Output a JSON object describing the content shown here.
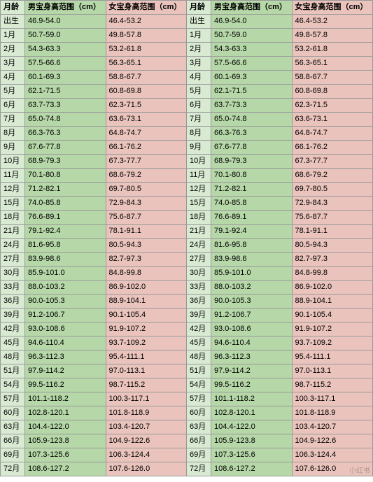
{
  "columns": {
    "age": "月龄",
    "boy": "男宝身高范围（cm）",
    "girl": "女宝身高范围（cm）"
  },
  "watermark": "小红书",
  "rows": [
    {
      "age": "出生",
      "boy": "46.9-54.0",
      "girl": "46.4-53.2"
    },
    {
      "age": "1月",
      "boy": "50.7-59.0",
      "girl": "49.8-57.8"
    },
    {
      "age": "2月",
      "boy": "54.3-63.3",
      "girl": "53.2-61.8"
    },
    {
      "age": "3月",
      "boy": "57.5-66.6",
      "girl": "56.3-65.1"
    },
    {
      "age": "4月",
      "boy": "60.1-69.3",
      "girl": "58.8-67.7"
    },
    {
      "age": "5月",
      "boy": "62.1-71.5",
      "girl": "60.8-69.8"
    },
    {
      "age": "6月",
      "boy": "63.7-73.3",
      "girl": "62.3-71.5"
    },
    {
      "age": "7月",
      "boy": "65.0-74.8",
      "girl": "63.6-73.1"
    },
    {
      "age": "8月",
      "boy": "66.3-76.3",
      "girl": "64.8-74.7"
    },
    {
      "age": "9月",
      "boy": "67.6-77.8",
      "girl": "66.1-76.2"
    },
    {
      "age": "10月",
      "boy": "68.9-79.3",
      "girl": "67.3-77.7"
    },
    {
      "age": "11月",
      "boy": "70.1-80.8",
      "girl": "68.6-79.2"
    },
    {
      "age": "12月",
      "boy": "71.2-82.1",
      "girl": "69.7-80.5"
    },
    {
      "age": "15月",
      "boy": "74.0-85.8",
      "girl": "72.9-84.3"
    },
    {
      "age": "18月",
      "boy": "76.6-89.1",
      "girl": "75.6-87.7"
    },
    {
      "age": "21月",
      "boy": "79.1-92.4",
      "girl": "78.1-91.1"
    },
    {
      "age": "24月",
      "boy": "81.6-95.8",
      "girl": "80.5-94.3"
    },
    {
      "age": "27月",
      "boy": "83.9-98.6",
      "girl": "82.7-97.3"
    },
    {
      "age": "30月",
      "boy": "85.9-101.0",
      "girl": "84.8-99.8"
    },
    {
      "age": "33月",
      "boy": "88.0-103.2",
      "girl": "86.9-102.0"
    },
    {
      "age": "36月",
      "boy": "90.0-105.3",
      "girl": "88.9-104.1"
    },
    {
      "age": "39月",
      "boy": "91.2-106.7",
      "girl": "90.1-105.4"
    },
    {
      "age": "42月",
      "boy": "93.0-108.6",
      "girl": "91.9-107.2"
    },
    {
      "age": "45月",
      "boy": "94.6-110.4",
      "girl": "93.7-109.2"
    },
    {
      "age": "48月",
      "boy": "96.3-112.3",
      "girl": "95.4-111.1"
    },
    {
      "age": "51月",
      "boy": "97.9-114.2",
      "girl": "97.0-113.1"
    },
    {
      "age": "54月",
      "boy": "99.5-116.2",
      "girl": "98.7-115.2"
    },
    {
      "age": "57月",
      "boy": "101.1-118.2",
      "girl": "100.3-117.1"
    },
    {
      "age": "60月",
      "boy": "102.8-120.1",
      "girl": "101.8-118.9"
    },
    {
      "age": "63月",
      "boy": "104.4-122.0",
      "girl": "103.4-120.7"
    },
    {
      "age": "66月",
      "boy": "105.9-123.8",
      "girl": "104.9-122.6"
    },
    {
      "age": "69月",
      "boy": "107.3-125.6",
      "girl": "106.3-124.4"
    },
    {
      "age": "72月",
      "boy": "108.6-127.2",
      "girl": "107.6-126.0"
    }
  ]
}
